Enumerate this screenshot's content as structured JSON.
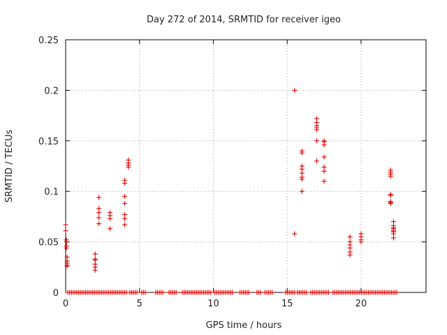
{
  "chart_data": {
    "type": "scatter",
    "title": "Day 272 of 2014, SRMTID for receiver igeo",
    "xlabel": "GPS time / hours",
    "ylabel": "SRMTID / TECUs",
    "xlim": [
      0,
      24.4
    ],
    "ylim": [
      0,
      0.25
    ],
    "xticks": [
      0,
      5,
      10,
      15,
      20
    ],
    "xtick_labels": [
      "0",
      "5",
      "10",
      "15",
      "20"
    ],
    "yticks": [
      0,
      0.05,
      0.1,
      0.15,
      0.2,
      0.25
    ],
    "ytick_labels": [
      "0",
      "0.05",
      "0.1",
      "0.15",
      "0.2",
      "0.25"
    ],
    "grid": true,
    "marker": "+",
    "marker_color": "#dd0000",
    "series": [
      {
        "name": "SRMTID",
        "points": [
          [
            0.0,
            0.067
          ],
          [
            0.0,
            0.061
          ],
          [
            0.05,
            0.052
          ],
          [
            0.05,
            0.05
          ],
          [
            0.05,
            0.046
          ],
          [
            0.05,
            0.044
          ],
          [
            0.1,
            0.035
          ],
          [
            0.1,
            0.031
          ],
          [
            0.1,
            0.029
          ],
          [
            0.1,
            0.027
          ],
          [
            0.1,
            0.026
          ],
          [
            2.0,
            0.038
          ],
          [
            2.0,
            0.033
          ],
          [
            2.0,
            0.032
          ],
          [
            2.0,
            0.028
          ],
          [
            2.0,
            0.025
          ],
          [
            2.0,
            0.022
          ],
          [
            2.25,
            0.094
          ],
          [
            2.25,
            0.083
          ],
          [
            2.25,
            0.079
          ],
          [
            2.25,
            0.074
          ],
          [
            2.25,
            0.068
          ],
          [
            3.0,
            0.079
          ],
          [
            3.0,
            0.076
          ],
          [
            3.0,
            0.073
          ],
          [
            3.0,
            0.063
          ],
          [
            4.0,
            0.111
          ],
          [
            4.0,
            0.108
          ],
          [
            4.0,
            0.095
          ],
          [
            4.0,
            0.088
          ],
          [
            4.0,
            0.077
          ],
          [
            4.0,
            0.073
          ],
          [
            4.0,
            0.067
          ],
          [
            4.25,
            0.131
          ],
          [
            4.25,
            0.128
          ],
          [
            4.25,
            0.126
          ],
          [
            4.25,
            0.124
          ],
          [
            15.5,
            0.2
          ],
          [
            15.5,
            0.058
          ],
          [
            16.0,
            0.14
          ],
          [
            16.0,
            0.138
          ],
          [
            16.0,
            0.125
          ],
          [
            16.0,
            0.122
          ],
          [
            16.0,
            0.118
          ],
          [
            16.0,
            0.114
          ],
          [
            16.0,
            0.112
          ],
          [
            16.0,
            0.1
          ],
          [
            17.0,
            0.172
          ],
          [
            17.0,
            0.168
          ],
          [
            17.0,
            0.165
          ],
          [
            17.0,
            0.163
          ],
          [
            17.0,
            0.161
          ],
          [
            17.0,
            0.15
          ],
          [
            17.0,
            0.13
          ],
          [
            17.5,
            0.15
          ],
          [
            17.5,
            0.149
          ],
          [
            17.5,
            0.146
          ],
          [
            17.5,
            0.134
          ],
          [
            17.5,
            0.124
          ],
          [
            17.5,
            0.12
          ],
          [
            17.5,
            0.11
          ],
          [
            19.25,
            0.055
          ],
          [
            19.25,
            0.05
          ],
          [
            19.25,
            0.047
          ],
          [
            19.25,
            0.044
          ],
          [
            19.25,
            0.04
          ],
          [
            19.25,
            0.037
          ],
          [
            20.0,
            0.058
          ],
          [
            20.0,
            0.055
          ],
          [
            20.0,
            0.052
          ],
          [
            20.0,
            0.05
          ],
          [
            22.0,
            0.121
          ],
          [
            22.0,
            0.119
          ],
          [
            22.0,
            0.117
          ],
          [
            22.0,
            0.115
          ],
          [
            22.0,
            0.097
          ],
          [
            22.0,
            0.096
          ],
          [
            22.0,
            0.09
          ],
          [
            22.0,
            0.089
          ],
          [
            22.0,
            0.088
          ],
          [
            22.2,
            0.07
          ],
          [
            22.2,
            0.066
          ],
          [
            22.2,
            0.064
          ],
          [
            22.2,
            0.063
          ],
          [
            22.2,
            0.061
          ],
          [
            22.2,
            0.06
          ],
          [
            22.2,
            0.058
          ],
          [
            22.2,
            0.054
          ]
        ],
        "zero_ranges": [
          [
            0.15,
            4.15
          ],
          [
            4.35,
            4.9
          ],
          [
            5.15,
            5.5
          ],
          [
            6.1,
            6.6
          ],
          [
            7.0,
            7.5
          ],
          [
            7.9,
            9.9
          ],
          [
            10.1,
            11.4
          ],
          [
            11.8,
            12.5
          ],
          [
            12.95,
            13.3
          ],
          [
            13.5,
            14.05
          ],
          [
            14.9,
            15.5
          ],
          [
            15.7,
            16.4
          ],
          [
            16.6,
            17.9
          ],
          [
            18.1,
            22.5
          ]
        ],
        "zero_step_hours": 0.12
      }
    ]
  }
}
